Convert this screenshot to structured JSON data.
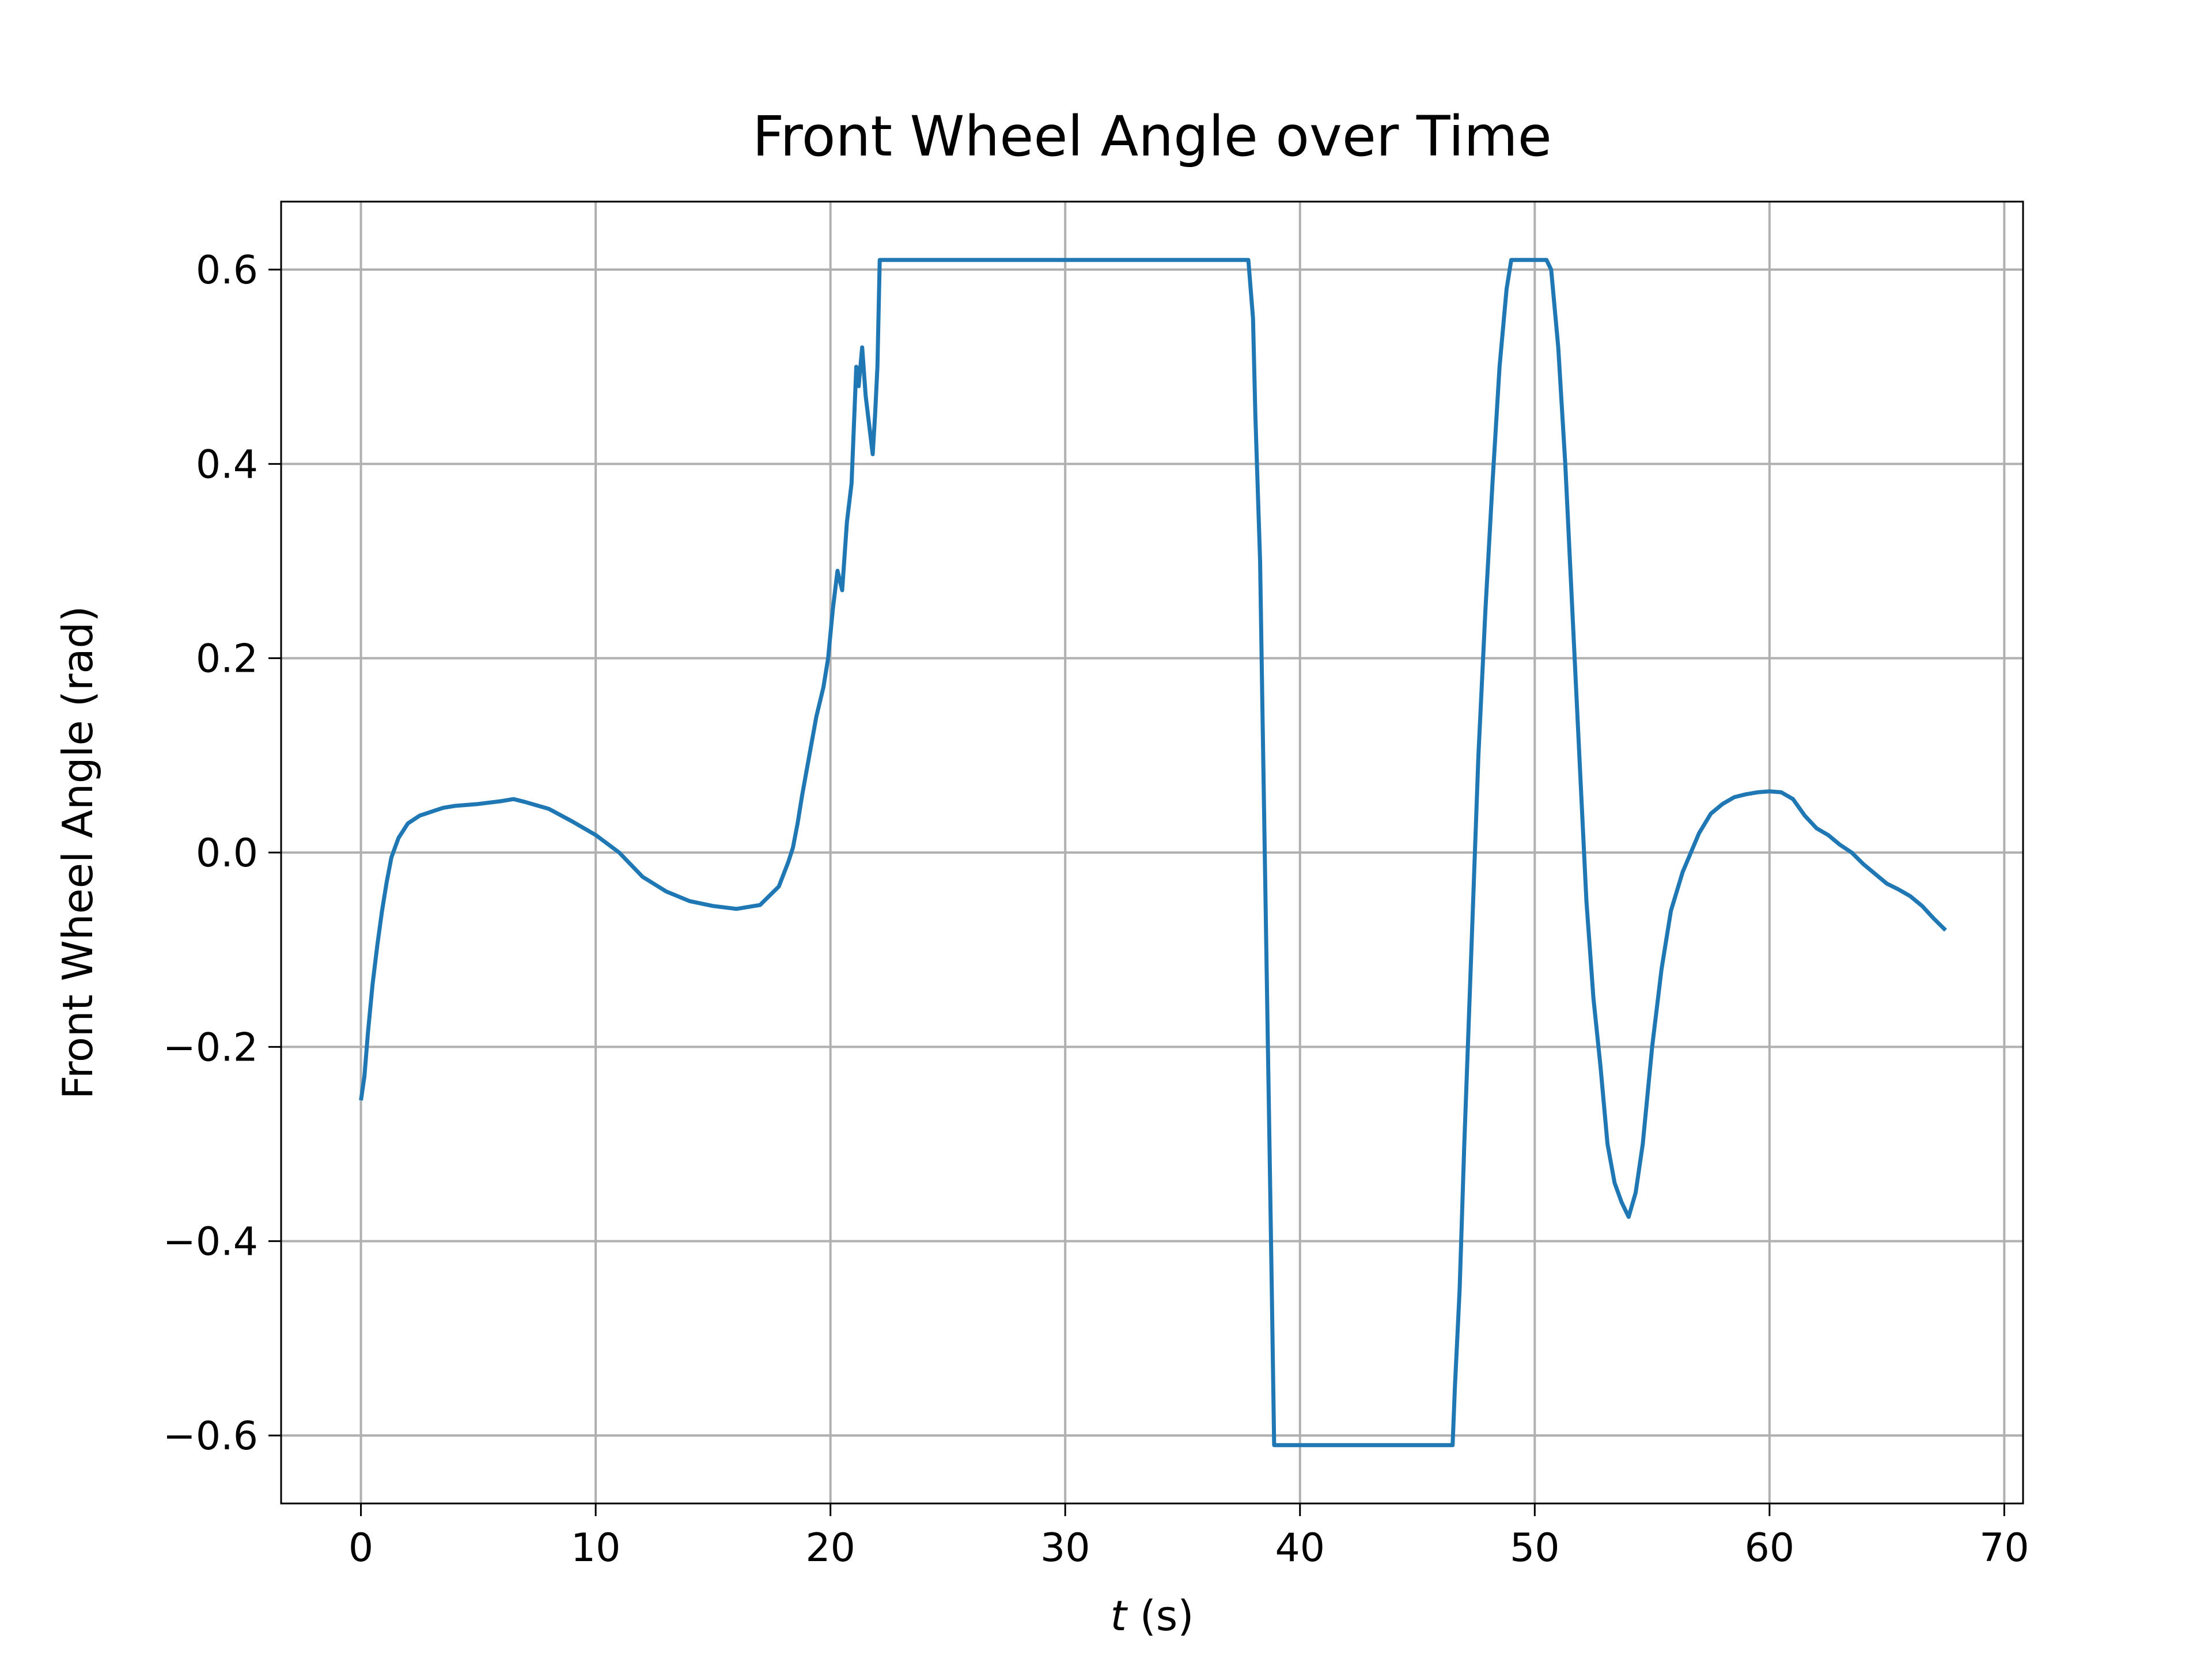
{
  "chart_data": {
    "type": "line",
    "title": "Front Wheel Angle over Time",
    "xlabel": {
      "italic": "t",
      "rest": " (s)"
    },
    "ylabel": "Front Wheel Angle (rad)",
    "xlim": [
      -3.4,
      70.8
    ],
    "ylim": [
      -0.67,
      0.67
    ],
    "x_ticks": [
      0,
      10,
      20,
      30,
      40,
      50,
      60,
      70
    ],
    "x_tick_labels": [
      "0",
      "10",
      "20",
      "30",
      "40",
      "50",
      "60",
      "70"
    ],
    "y_ticks": [
      -0.6,
      -0.4,
      -0.2,
      0.0,
      0.2,
      0.4,
      0.6
    ],
    "y_tick_labels": [
      "−0.6",
      "−0.4",
      "−0.2",
      "0.0",
      "0.2",
      "0.4",
      "0.6"
    ],
    "grid": true,
    "series": [
      {
        "name": "front wheel angle",
        "color": "#1f77b4",
        "points": [
          [
            0.0,
            -0.255
          ],
          [
            0.15,
            -0.23
          ],
          [
            0.3,
            -0.185
          ],
          [
            0.5,
            -0.135
          ],
          [
            0.7,
            -0.095
          ],
          [
            0.9,
            -0.06
          ],
          [
            1.1,
            -0.03
          ],
          [
            1.3,
            -0.005
          ],
          [
            1.6,
            0.015
          ],
          [
            2.0,
            0.03
          ],
          [
            2.5,
            0.038
          ],
          [
            3.0,
            0.042
          ],
          [
            3.5,
            0.046
          ],
          [
            4.0,
            0.048
          ],
          [
            5.0,
            0.05
          ],
          [
            6.0,
            0.053
          ],
          [
            6.5,
            0.055
          ],
          [
            7.0,
            0.052
          ],
          [
            8.0,
            0.045
          ],
          [
            9.0,
            0.032
          ],
          [
            10.0,
            0.018
          ],
          [
            11.0,
            0.0
          ],
          [
            12.0,
            -0.025
          ],
          [
            13.0,
            -0.04
          ],
          [
            14.0,
            -0.05
          ],
          [
            15.0,
            -0.055
          ],
          [
            16.0,
            -0.058
          ],
          [
            17.0,
            -0.054
          ],
          [
            17.8,
            -0.035
          ],
          [
            18.2,
            -0.01
          ],
          [
            18.4,
            0.005
          ],
          [
            18.6,
            0.03
          ],
          [
            18.8,
            0.06
          ],
          [
            19.1,
            0.1
          ],
          [
            19.4,
            0.14
          ],
          [
            19.7,
            0.17
          ],
          [
            19.9,
            0.2
          ],
          [
            20.1,
            0.25
          ],
          [
            20.3,
            0.29
          ],
          [
            20.5,
            0.27
          ],
          [
            20.7,
            0.34
          ],
          [
            20.9,
            0.38
          ],
          [
            21.1,
            0.5
          ],
          [
            21.2,
            0.48
          ],
          [
            21.35,
            0.52
          ],
          [
            21.5,
            0.47
          ],
          [
            21.65,
            0.44
          ],
          [
            21.8,
            0.41
          ],
          [
            21.9,
            0.45
          ],
          [
            22.0,
            0.5
          ],
          [
            22.1,
            0.61
          ],
          [
            30.0,
            0.61
          ],
          [
            37.8,
            0.61
          ],
          [
            38.0,
            0.55
          ],
          [
            38.1,
            0.45
          ],
          [
            38.3,
            0.3
          ],
          [
            38.4,
            0.15
          ],
          [
            38.5,
            0.0
          ],
          [
            38.6,
            -0.15
          ],
          [
            38.7,
            -0.3
          ],
          [
            38.8,
            -0.45
          ],
          [
            38.9,
            -0.61
          ],
          [
            42.0,
            -0.61
          ],
          [
            46.5,
            -0.61
          ],
          [
            46.6,
            -0.55
          ],
          [
            46.8,
            -0.45
          ],
          [
            47.0,
            -0.3
          ],
          [
            47.3,
            -0.1
          ],
          [
            47.6,
            0.1
          ],
          [
            47.9,
            0.25
          ],
          [
            48.2,
            0.38
          ],
          [
            48.5,
            0.5
          ],
          [
            48.8,
            0.58
          ],
          [
            49.0,
            0.61
          ],
          [
            50.5,
            0.61
          ],
          [
            50.7,
            0.6
          ],
          [
            51.0,
            0.52
          ],
          [
            51.3,
            0.4
          ],
          [
            51.6,
            0.25
          ],
          [
            51.9,
            0.1
          ],
          [
            52.2,
            -0.05
          ],
          [
            52.5,
            -0.15
          ],
          [
            52.8,
            -0.22
          ],
          [
            53.1,
            -0.3
          ],
          [
            53.4,
            -0.34
          ],
          [
            53.7,
            -0.36
          ],
          [
            54.0,
            -0.375
          ],
          [
            54.3,
            -0.35
          ],
          [
            54.6,
            -0.3
          ],
          [
            55.0,
            -0.2
          ],
          [
            55.4,
            -0.12
          ],
          [
            55.8,
            -0.06
          ],
          [
            56.3,
            -0.02
          ],
          [
            57.0,
            0.02
          ],
          [
            57.5,
            0.04
          ],
          [
            58.0,
            0.05
          ],
          [
            58.5,
            0.057
          ],
          [
            59.0,
            0.06
          ],
          [
            59.5,
            0.062
          ],
          [
            60.0,
            0.063
          ],
          [
            60.5,
            0.062
          ],
          [
            61.0,
            0.055
          ],
          [
            61.5,
            0.038
          ],
          [
            62.0,
            0.025
          ],
          [
            62.5,
            0.018
          ],
          [
            63.0,
            0.008
          ],
          [
            63.5,
            0.0
          ],
          [
            64.0,
            -0.012
          ],
          [
            64.5,
            -0.022
          ],
          [
            65.0,
            -0.032
          ],
          [
            65.5,
            -0.038
          ],
          [
            66.0,
            -0.045
          ],
          [
            66.5,
            -0.055
          ],
          [
            67.0,
            -0.068
          ],
          [
            67.5,
            -0.08
          ]
        ]
      }
    ]
  }
}
